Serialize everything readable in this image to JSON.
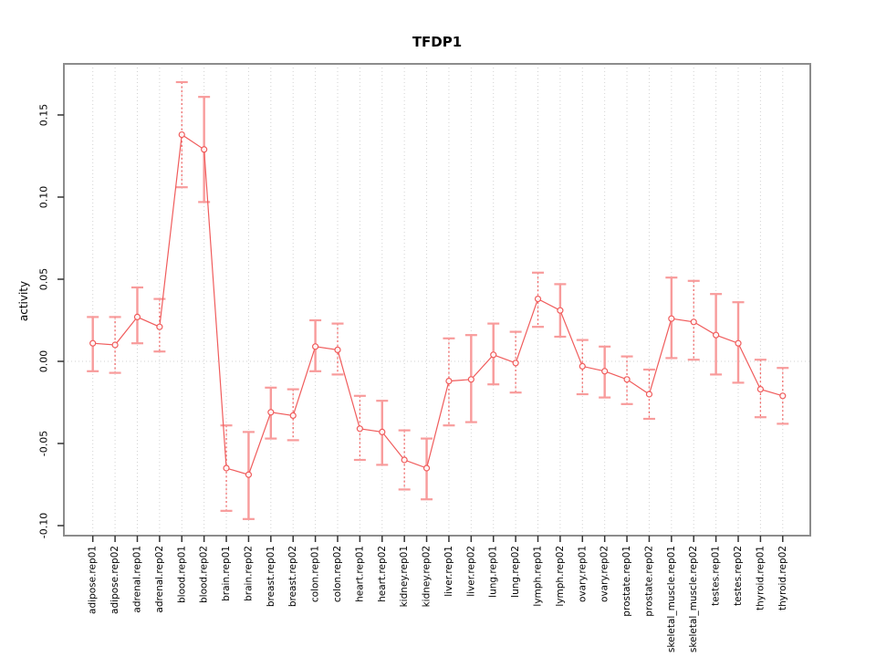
{
  "title": "TFDP1",
  "chart_data": {
    "type": "line",
    "title": "TFDP1",
    "xlabel": "",
    "ylabel": "activity",
    "legend": "none",
    "grid": "light dotted vertical gridline at every category; dotted horizontal line at y=0",
    "marker": "open-circle",
    "error_bars": true,
    "ylim": [
      -0.1061,
      0.1811
    ],
    "yticks": [
      0.15,
      0.1,
      0.05,
      0.0,
      -0.05,
      -0.1
    ],
    "ytick_labels": [
      "0.15",
      "0.10",
      "0.05",
      "0.00",
      "-0.05",
      "-0.10"
    ],
    "categories": [
      "adipose.rep01",
      "adipose.rep02",
      "adrenal.rep01",
      "adrenal.rep02",
      "blood.rep01",
      "blood.rep02",
      "brain.rep01",
      "brain.rep02",
      "breast.rep01",
      "breast.rep02",
      "colon.rep01",
      "colon.rep02",
      "heart.rep01",
      "heart.rep02",
      "kidney.rep01",
      "kidney.rep02",
      "liver.rep01",
      "liver.rep02",
      "lung.rep01",
      "lung.rep02",
      "lymph.rep01",
      "lymph.rep02",
      "ovary.rep01",
      "ovary.rep02",
      "prostate.rep01",
      "prostate.rep02",
      "skeletal_muscle.rep01",
      "skeletal_muscle.rep02",
      "testes.rep01",
      "testes.rep02",
      "thyroid.rep01",
      "thyroid.rep02"
    ],
    "values": [
      0.011,
      0.01,
      0.027,
      0.021,
      0.138,
      0.129,
      -0.065,
      -0.069,
      -0.031,
      -0.033,
      0.009,
      0.007,
      -0.041,
      -0.043,
      -0.06,
      -0.065,
      -0.012,
      -0.011,
      0.004,
      -0.001,
      0.038,
      0.031,
      -0.003,
      -0.006,
      -0.011,
      -0.02,
      0.026,
      0.024,
      0.016,
      0.011,
      -0.017,
      -0.021
    ],
    "error_low": [
      -0.006,
      -0.007,
      0.011,
      0.006,
      0.106,
      0.097,
      -0.091,
      -0.096,
      -0.047,
      -0.048,
      -0.006,
      -0.008,
      -0.06,
      -0.063,
      -0.078,
      -0.084,
      -0.039,
      -0.037,
      -0.014,
      -0.019,
      0.021,
      0.015,
      -0.02,
      -0.022,
      -0.026,
      -0.035,
      0.002,
      0.001,
      -0.008,
      -0.013,
      -0.034,
      -0.038
    ],
    "error_high": [
      0.027,
      0.027,
      0.045,
      0.038,
      0.17,
      0.161,
      -0.039,
      -0.043,
      -0.016,
      -0.017,
      0.025,
      0.023,
      -0.021,
      -0.024,
      -0.042,
      -0.047,
      0.014,
      0.016,
      0.023,
      0.018,
      0.054,
      0.047,
      0.013,
      0.009,
      0.003,
      -0.005,
      0.051,
      0.049,
      0.041,
      0.036,
      0.001,
      -0.004
    ],
    "error_bar_styles": [
      "solid",
      "dashed",
      "solid",
      "dashed",
      "dashed",
      "solid",
      "dashed",
      "solid",
      "solid",
      "dashed",
      "solid",
      "dashed",
      "dashed",
      "solid",
      "dashed",
      "solid",
      "dashed",
      "solid",
      "solid",
      "dashed",
      "dashed",
      "solid",
      "dashed",
      "solid",
      "dashed",
      "dashed",
      "solid",
      "dashed",
      "solid",
      "solid",
      "dashed",
      "dashed"
    ],
    "colors": {
      "line": "#f05c5c",
      "point_stroke": "#f05c5c",
      "error_bar_solid": "#f89b9b",
      "error_bar_dashed": "#ef6a6a",
      "gridline": "#d2d2d2",
      "frame": "#8c8c8c",
      "tick": "#333333",
      "text": "#000000",
      "background": "#ffffff"
    }
  }
}
